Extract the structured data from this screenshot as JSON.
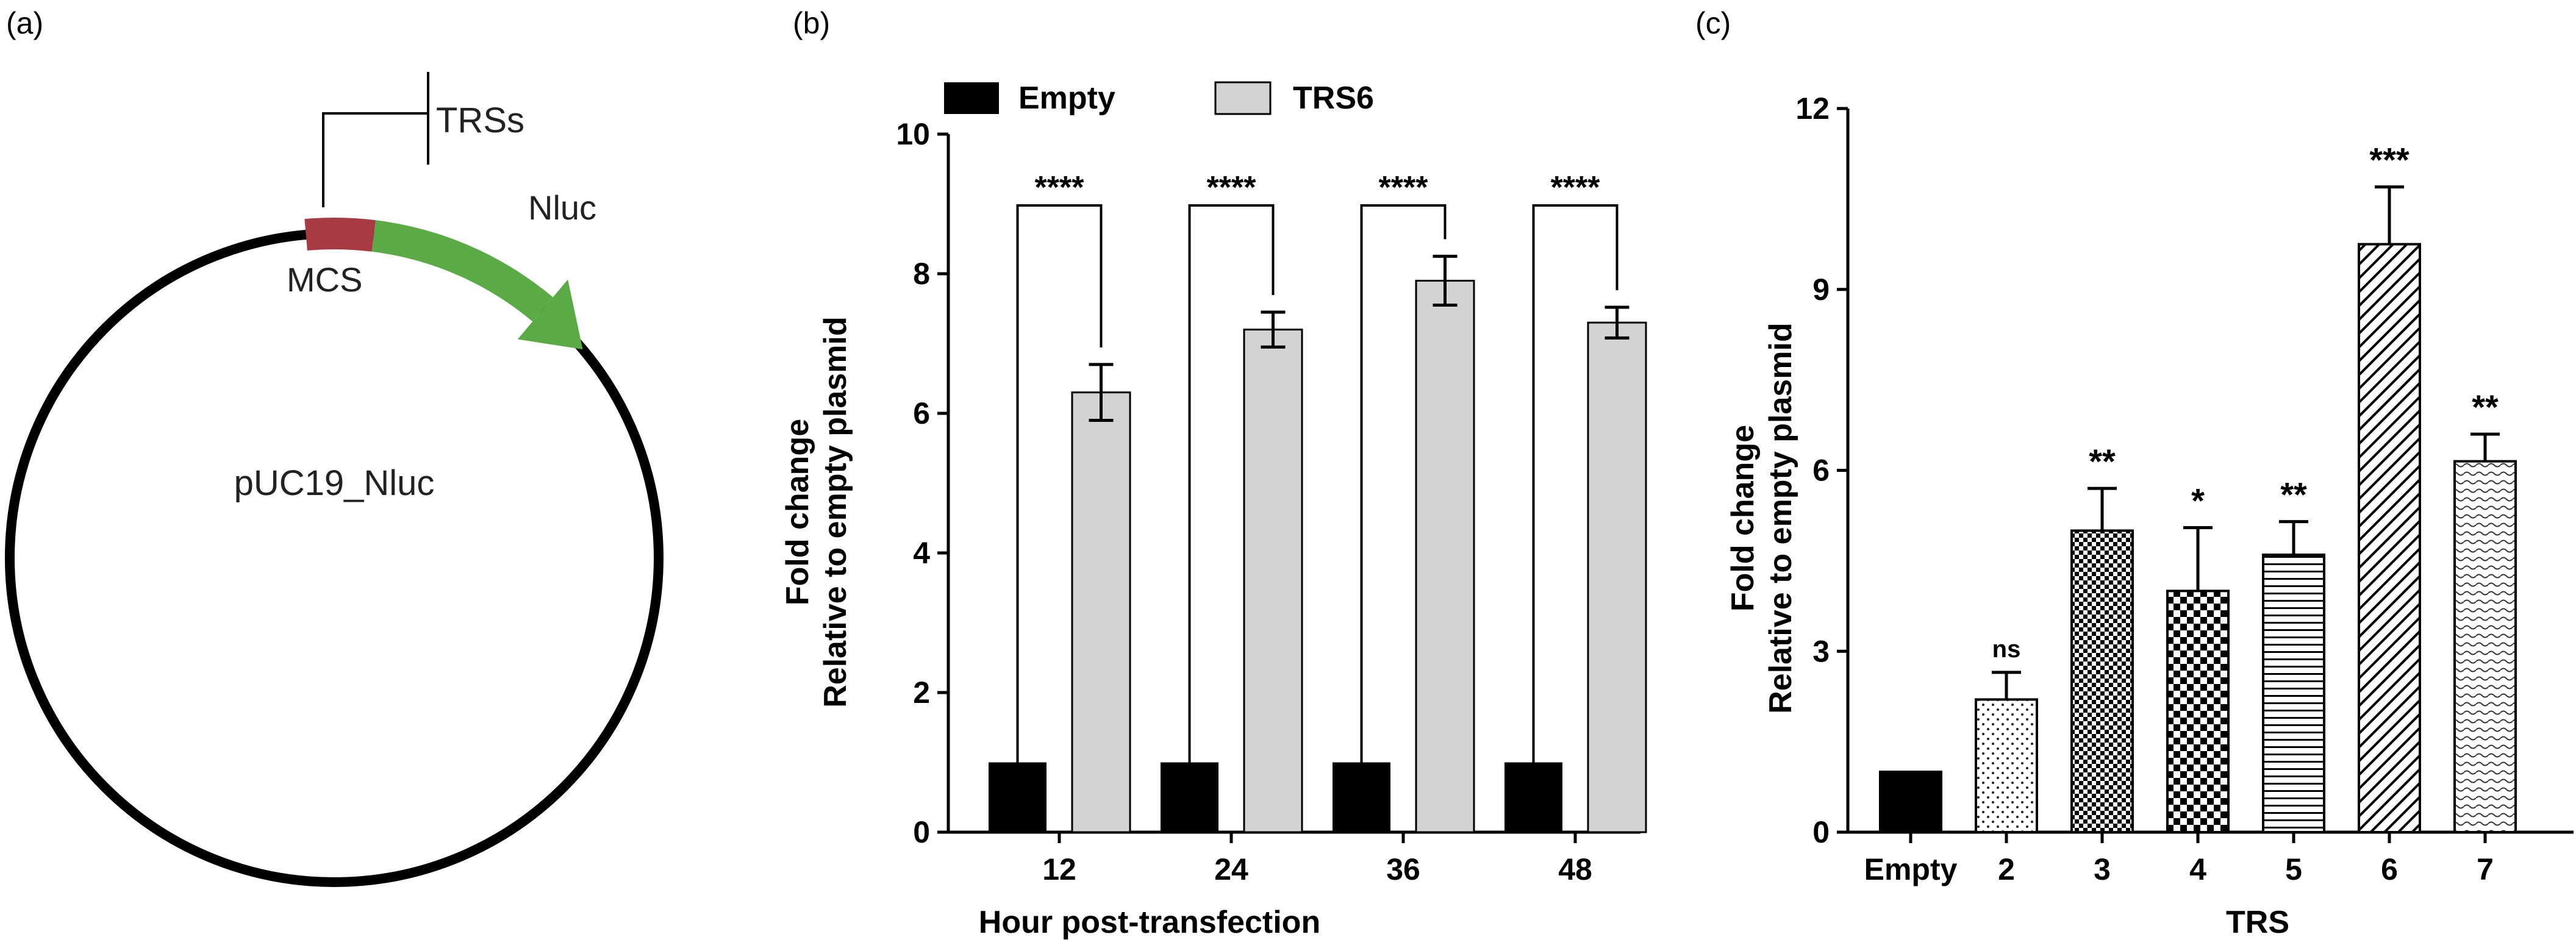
{
  "figure": {
    "panel_labels": [
      "(a)",
      "(b)",
      "(c)"
    ]
  },
  "plasmid": {
    "name": "pUC19_Nluc",
    "insert_label": "TRSs",
    "mcs_label": "MCS",
    "gene_label": "Nluc",
    "mcs_color": "#A83A43",
    "gene_color": "#5AAB46"
  },
  "chart_data": [
    {
      "type": "bar",
      "panel": "(b)",
      "title": "",
      "xlabel": "Hour post-transfection",
      "ylabel": [
        "Fold change",
        "Relative to empty plasmid"
      ],
      "categories": [
        "12",
        "24",
        "36",
        "48"
      ],
      "series": [
        {
          "name": "Empty",
          "values": [
            1,
            1,
            1,
            1
          ],
          "errors": [
            0,
            0,
            0,
            0
          ],
          "color": "#000000"
        },
        {
          "name": "TRS6",
          "values": [
            6.3,
            7.2,
            7.9,
            7.3
          ],
          "errors": [
            0.4,
            0.25,
            0.35,
            0.22
          ],
          "color": "#D3D3D3"
        }
      ],
      "significance": [
        "****",
        "****",
        "****",
        "****"
      ],
      "ylim": [
        0,
        10
      ],
      "yticks": [
        0,
        2,
        4,
        6,
        8,
        10
      ],
      "legend": "top"
    },
    {
      "type": "bar",
      "panel": "(c)",
      "title": "",
      "xlabel": "TRS",
      "ylabel": [
        "Fold change",
        "Relative to empty plasmid"
      ],
      "categories": [
        "Empty",
        "2",
        "3",
        "4",
        "5",
        "6",
        "7"
      ],
      "values": [
        1,
        2.2,
        5.0,
        4.0,
        4.6,
        9.75,
        6.15
      ],
      "errors": [
        0,
        0.45,
        0.7,
        1.05,
        0.55,
        0.95,
        0.45
      ],
      "patterns": [
        "solid",
        "dots",
        "checker",
        "bigchecker",
        "hlines",
        "diagonal",
        "wavy"
      ],
      "significance": [
        "",
        "ns",
        "**",
        "*",
        "**",
        "***",
        "**"
      ],
      "ylim": [
        0,
        12
      ],
      "yticks": [
        0,
        3,
        6,
        9,
        12
      ]
    }
  ]
}
